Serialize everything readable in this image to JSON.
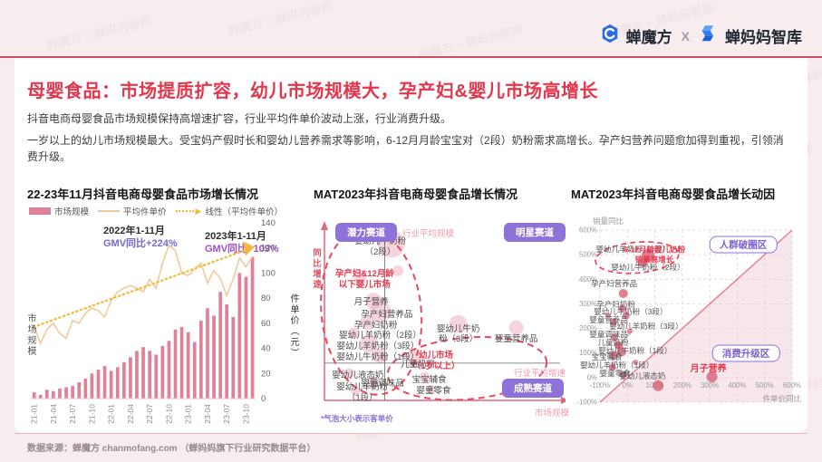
{
  "page": {
    "bg": "#f7edee",
    "watermark": "蝉魔方 × 蝉妈妈智库",
    "source_note": "数据来源：蝉魔方 chanmofang.com （蝉妈妈旗下行业研究数据平台）"
  },
  "header": {
    "brand_left": "蝉魔方",
    "separator": "X",
    "brand_right": "蝉妈妈智库",
    "accent": "#2a6be8"
  },
  "title": "母婴食品：市场提质扩容，幼儿市场规模大，孕产妇&婴儿市场高增长",
  "paragraphs": [
    "抖音电商母婴食品市场规模保持高增速扩容，行业平均件单价波动上涨，行业消费升级。",
    "一岁以上的幼儿市场规模最大。受宝妈产假时长和婴幼儿营养需求等影响，6-12月月龄宝宝对（2段）奶粉需求高增长。孕产妇营养问题愈加得到重视，引领消费升级。"
  ],
  "chart_data": [
    {
      "type": "bar",
      "title": "22-23年11月抖音电商母婴食品市场增长情况",
      "legend": [
        "市场规模",
        "平均件单价",
        "线性（平均件单价）"
      ],
      "annotations": [
        {
          "line1": "2022年1-11月",
          "line2": "GMV同比+224%",
          "color": "#7468d4"
        },
        {
          "line1": "2023年1-11月",
          "line2": "GMV同比+109%",
          "color": "#a04fc9"
        }
      ],
      "categories": [
        "21-01",
        "21-02",
        "21-03",
        "21-04",
        "21-05",
        "21-06",
        "21-07",
        "21-08",
        "21-09",
        "21-10",
        "21-11",
        "21-12",
        "22-01",
        "22-02",
        "22-03",
        "22-04",
        "22-05",
        "22-06",
        "22-07",
        "22-08",
        "22-09",
        "22-10",
        "22-11",
        "22-12",
        "23-01",
        "23-02",
        "23-03",
        "23-04",
        "23-05",
        "23-06",
        "23-07",
        "23-08",
        "23-09",
        "23-10",
        "23-11"
      ],
      "series": [
        {
          "name": "市场规模",
          "kind": "bar",
          "values": [
            5,
            3,
            7,
            6,
            8,
            9,
            10,
            13,
            16,
            20,
            23,
            26,
            22,
            25,
            29,
            33,
            38,
            41,
            38,
            35,
            42,
            46,
            55,
            57,
            53,
            45,
            62,
            72,
            66,
            85,
            75,
            65,
            100,
            97,
            113
          ]
        },
        {
          "name": "平均件单价",
          "kind": "line",
          "values": [
            58,
            44,
            55,
            60,
            52,
            48,
            62,
            60,
            68,
            72,
            70,
            65,
            78,
            85,
            88,
            90,
            88,
            85,
            95,
            88,
            108,
            122,
            118,
            100,
            98,
            103,
            108,
            92,
            102,
            96,
            82,
            95,
            112,
            105,
            113
          ]
        },
        {
          "name": "线性（平均件单价）",
          "kind": "trend",
          "from": 57,
          "to": 118
        }
      ],
      "left_label": "市场规模",
      "y_axis": {
        "title": "件单价（元）",
        "ticks": [
          0,
          20,
          40,
          60,
          80,
          100,
          120,
          140
        ],
        "max": 140
      },
      "colors": {
        "bar": "#df8298",
        "line": "#f0cb9a",
        "trend": "#f5b93e"
      }
    },
    {
      "type": "scatter",
      "title": "MAT2023年抖音电商母婴食品增长情况",
      "ylabel": "同比增速",
      "xlabel": "市场规模",
      "ref_lines": {
        "vertical": "行业平均规模",
        "horizontal": "行业平均增速"
      },
      "badges": [
        "潜力赛道",
        "明星赛道",
        "成熟赛道"
      ],
      "footnote": "*气泡大小表示客单价",
      "quadrant": {
        "vx": 27,
        "hy": 21
      },
      "bubbles": [
        [
          30,
          12,
          15
        ],
        [
          22,
          44,
          9
        ],
        [
          25,
          50,
          12
        ],
        [
          19,
          56,
          8
        ],
        [
          13,
          62,
          6
        ],
        [
          20,
          68,
          10
        ],
        [
          25,
          75,
          8
        ],
        [
          40,
          76,
          9
        ],
        [
          11,
          85,
          6
        ],
        [
          22,
          90,
          7
        ],
        [
          14,
          95,
          5
        ],
        [
          45,
          87,
          6
        ],
        [
          48,
          94,
          5
        ],
        [
          60,
          57,
          10
        ],
        [
          86,
          59,
          8
        ],
        [
          33,
          27,
          6
        ],
        [
          16,
          30,
          7
        ]
      ],
      "items": [
        {
          "t": "婴幼儿牛奶粉\n（2段）",
          "x": 25,
          "y": 14
        },
        {
          "t": "孕产妇&12月龄\n以下婴儿市场",
          "x": 18,
          "y": 32,
          "red": true
        },
        {
          "t": "月子营养",
          "x": 21,
          "y": 45
        },
        {
          "t": "孕产妇营养品",
          "x": 28,
          "y": 52
        },
        {
          "t": "孕产妇奶粉",
          "x": 23,
          "y": 58
        },
        {
          "t": "婴幼儿羊奶粉（2段）",
          "x": 25,
          "y": 64
        },
        {
          "t": "婴幼儿羊奶粉（3段）",
          "x": 24,
          "y": 70
        },
        {
          "t": "婴幼儿牛奶粉（1段）",
          "x": 24,
          "y": 76
        },
        {
          "t": "儿童奶粉",
          "x": 42,
          "y": 80
        },
        {
          "t": "婴幼儿液态奶",
          "x": 15,
          "y": 86
        },
        {
          "t": "婴童调味品",
          "x": 26,
          "y": 91
        },
        {
          "t": "婴幼儿羊奶粉\n（1段）",
          "x": 17,
          "y": 96
        },
        {
          "t": "宝宝辅食",
          "x": 47,
          "y": 89
        },
        {
          "t": "婴童零食",
          "x": 49,
          "y": 95
        },
        {
          "t": "婴幼儿牛奶\n粉（3段）",
          "x": 60,
          "y": 63
        },
        {
          "t": "婴童营养品",
          "x": 86,
          "y": 66
        },
        {
          "t": "幼儿市场\n（1岁以上）",
          "x": 50,
          "y": 78,
          "red": true
        }
      ]
    },
    {
      "type": "scatter",
      "title": "MAT2023年抖音电商母婴食品增长动因",
      "ylabel": "销量同比",
      "xlabel": "件单价同比",
      "xlim": [
        -100,
        600
      ],
      "ylim": [
        -100,
        600
      ],
      "x_ticks": [
        "-100%",
        "0%",
        "100%",
        "200%",
        "300%",
        "400%",
        "500%",
        "600%"
      ],
      "y_ticks": [
        "600%",
        "500%",
        "400%",
        "300%",
        "200%",
        "100%",
        "0%",
        "-100%"
      ],
      "badges": [
        "人群破圈区",
        "消费升级区"
      ],
      "annotation": "6-12月龄婴儿奶粉\n销量高增长",
      "points": [
        {
          "t": "婴幼儿羊奶粉（2段）",
          "lx": 20,
          "ly": 522,
          "x": 75,
          "y": 497,
          "r": 7
        },
        {
          "t": "婴幼儿牛奶粉（2段）",
          "lx": 75,
          "ly": 448,
          "x": 55,
          "y": 467,
          "r": 5
        },
        {
          "t": "孕产妇营养品",
          "lx": -48,
          "ly": 383,
          "x": -15,
          "y": 342,
          "r": 5
        },
        {
          "t": "孕产妇奶粉",
          "lx": -42,
          "ly": 297,
          "x": -18,
          "y": 282,
          "r": 4
        },
        {
          "t": "婴幼儿牛奶粉（3段）",
          "lx": 12,
          "ly": 267,
          "x": -5,
          "y": 252,
          "r": 4
        },
        {
          "t": "婴童营养品",
          "lx": -68,
          "ly": 237,
          "x": -50,
          "y": 226,
          "r": 4
        },
        {
          "t": "婴幼儿羊奶粉（3段）",
          "lx": 68,
          "ly": 208,
          "x": -35,
          "y": 133,
          "r": 4,
          "leader": true
        },
        {
          "t": "婴童调味品",
          "lx": -68,
          "ly": 177,
          "x": -48,
          "y": 163,
          "r": 4
        },
        {
          "t": "儿童奶粉",
          "lx": -52,
          "ly": 143,
          "x": -30,
          "y": 128,
          "r": 4
        },
        {
          "t": "婴幼儿牛奶粉（1段）",
          "lx": 28,
          "ly": 110,
          "x": -22,
          "y": 104,
          "r": 5
        },
        {
          "t": "宝宝辅食",
          "lx": -75,
          "ly": 84,
          "x": -50,
          "y": 90,
          "r": 5
        },
        {
          "t": "婴幼儿羊奶粉（1段）",
          "lx": -38,
          "ly": 53,
          "x": -55,
          "y": 42,
          "r": 4
        },
        {
          "t": "婴童零食",
          "lx": -45,
          "ly": 18,
          "x": -15,
          "y": 12,
          "r": 4
        },
        {
          "t": "婴幼儿液态奶",
          "lx": 55,
          "ly": 8,
          "x": 112,
          "y": -33,
          "r": 6
        },
        {
          "t": "月子营养",
          "lx": 295,
          "ly": 32,
          "x": 308,
          "y": 3,
          "r": 6,
          "red": true
        }
      ],
      "extra_dots": [
        [
          8,
          188,
          3
        ],
        [
          -70,
          252,
          3
        ],
        [
          30,
          62,
          3
        ]
      ]
    }
  ]
}
